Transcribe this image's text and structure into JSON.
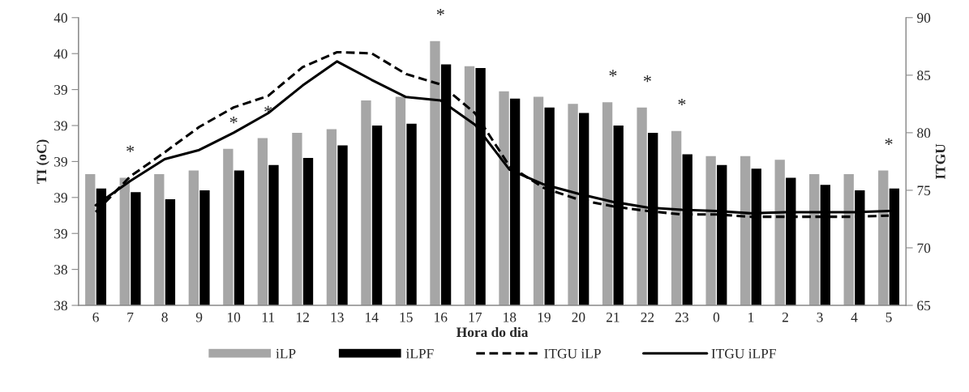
{
  "chart_data": {
    "type": "bar",
    "xlabel": "Hora do dia",
    "ylabel": "TI (oC)",
    "y2label": "ITGU",
    "categories": [
      "6",
      "7",
      "8",
      "9",
      "10",
      "11",
      "12",
      "13",
      "14",
      "15",
      "16",
      "17",
      "18",
      "19",
      "20",
      "21",
      "22",
      "23",
      "0",
      "1",
      "2",
      "3",
      "4",
      "5"
    ],
    "series": [
      {
        "name": "iLP",
        "color": "#a6a6a6",
        "values": [
          38.93,
          38.91,
          38.93,
          38.95,
          39.07,
          39.13,
          39.16,
          39.18,
          39.34,
          39.36,
          39.67,
          39.53,
          39.39,
          39.36,
          39.32,
          39.33,
          39.3,
          39.17,
          39.03,
          39.03,
          39.01,
          38.93,
          38.93,
          38.95
        ]
      },
      {
        "name": "iLPF",
        "color": "#000000",
        "values": [
          38.85,
          38.83,
          38.79,
          38.84,
          38.95,
          38.98,
          39.02,
          39.09,
          39.2,
          39.21,
          39.54,
          39.52,
          39.35,
          39.3,
          39.27,
          39.2,
          39.16,
          39.04,
          38.98,
          38.96,
          38.91,
          38.87,
          38.84,
          38.85
        ]
      },
      {
        "name": "ITGU iLP",
        "type": "line",
        "axis": "y2",
        "line_style": "dashed",
        "color": "#000000",
        "values": [
          73.1,
          76.2,
          78.3,
          80.5,
          82.2,
          83.2,
          85.7,
          87.0,
          86.9,
          85.1,
          84.2,
          81.7,
          77.1,
          75.2,
          74.2,
          73.6,
          73.2,
          72.9,
          72.9,
          72.7,
          72.7,
          72.7,
          72.7,
          72.8
        ]
      },
      {
        "name": "ITGU iLPF",
        "type": "line",
        "axis": "y2",
        "line_style": "solid",
        "color": "#000000",
        "values": [
          73.7,
          75.8,
          77.7,
          78.5,
          80.0,
          81.7,
          84.1,
          86.2,
          84.6,
          83.1,
          82.8,
          80.7,
          76.8,
          75.5,
          74.7,
          74.0,
          73.5,
          73.3,
          73.2,
          73.0,
          73.1,
          73.1,
          73.1,
          73.2
        ]
      }
    ],
    "ylim": [
      38.2,
      39.8
    ],
    "yticks": [
      {
        "value": 38.2,
        "label": "38"
      },
      {
        "value": 38.4,
        "label": "38"
      },
      {
        "value": 38.6,
        "label": "39"
      },
      {
        "value": 38.8,
        "label": "39"
      },
      {
        "value": 39.0,
        "label": "39"
      },
      {
        "value": 39.2,
        "label": "39"
      },
      {
        "value": 39.4,
        "label": "39"
      },
      {
        "value": 39.6,
        "label": "40"
      },
      {
        "value": 39.8,
        "label": "40"
      }
    ],
    "y2lim": [
      65,
      90
    ],
    "y2ticks": [
      65,
      70,
      75,
      80,
      85,
      90
    ],
    "annotations": [
      {
        "text": "*",
        "x": "7",
        "y": 38.91
      },
      {
        "text": "*",
        "x": "10",
        "y": 39.07
      },
      {
        "text": "*",
        "x": "11",
        "y": 39.13
      },
      {
        "text": "*",
        "x": "16",
        "y": 39.67
      },
      {
        "text": "*",
        "x": "21",
        "y": 39.33
      },
      {
        "text": "*",
        "x": "22",
        "y": 39.3
      },
      {
        "text": "*",
        "x": "23",
        "y": 39.17
      },
      {
        "text": "*",
        "x": "5",
        "y": 38.95
      }
    ],
    "grid": false,
    "legend": "bottom"
  }
}
